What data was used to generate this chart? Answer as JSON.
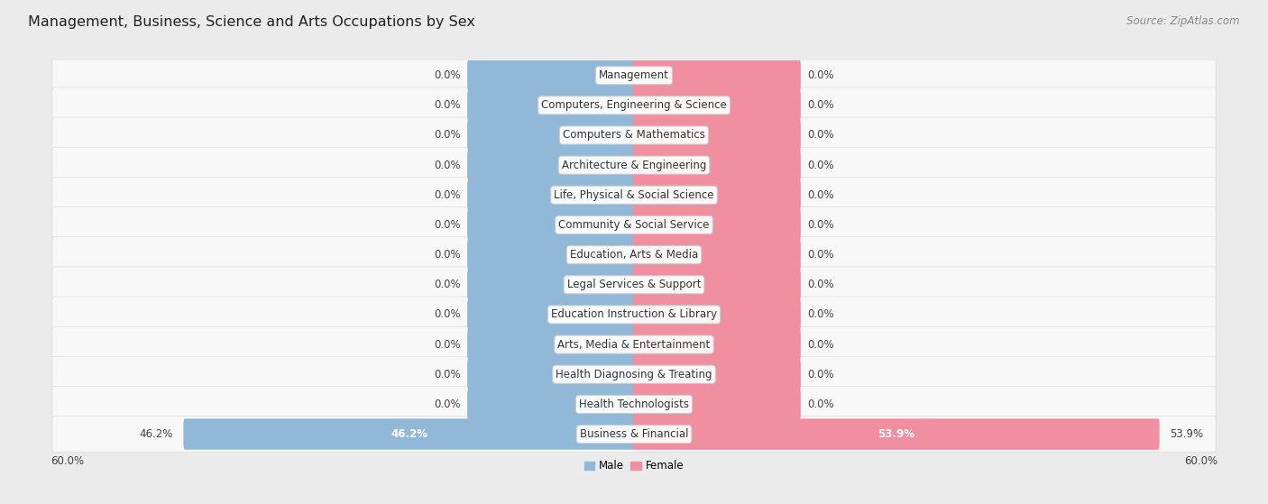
{
  "title": "Management, Business, Science and Arts Occupations by Sex",
  "source": "Source: ZipAtlas.com",
  "categories": [
    "Management",
    "Computers, Engineering & Science",
    "Computers & Mathematics",
    "Architecture & Engineering",
    "Life, Physical & Social Science",
    "Community & Social Service",
    "Education, Arts & Media",
    "Legal Services & Support",
    "Education Instruction & Library",
    "Arts, Media & Entertainment",
    "Health Diagnosing & Treating",
    "Health Technologists",
    "Business & Financial"
  ],
  "male_values": [
    0.0,
    0.0,
    0.0,
    0.0,
    0.0,
    0.0,
    0.0,
    0.0,
    0.0,
    0.0,
    0.0,
    0.0,
    46.2
  ],
  "female_values": [
    0.0,
    0.0,
    0.0,
    0.0,
    0.0,
    0.0,
    0.0,
    0.0,
    0.0,
    0.0,
    0.0,
    0.0,
    53.9
  ],
  "male_color": "#92b8d8",
  "female_color": "#f08fa0",
  "male_label": "Male",
  "female_label": "Female",
  "xlim": 60.0,
  "default_bar_width": 17.0,
  "background_color": "#ebebeb",
  "row_bg_color": "#f8f8f8",
  "title_fontsize": 11.5,
  "source_fontsize": 8.5,
  "value_fontsize": 8.5,
  "cat_label_fontsize": 8.5,
  "axis_label_fontsize": 8.5
}
